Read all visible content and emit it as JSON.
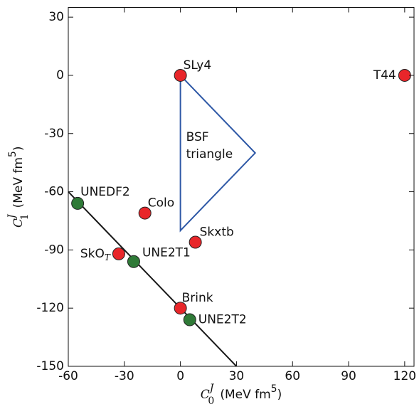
{
  "chart_data": {
    "type": "scatter",
    "x_label": {
      "symbol": "C",
      "sub": "0",
      "sup": "J",
      "unit": "(MeV fm",
      "unit_sup": "5",
      "close": ")"
    },
    "y_label": {
      "symbol": "C",
      "sub": "1",
      "sup": "J",
      "unit": "(MeV fm",
      "unit_sup": "5",
      "close": ")"
    },
    "xlim": [
      -60,
      125
    ],
    "ylim": [
      -150,
      35
    ],
    "xticks": [
      -60,
      -30,
      0,
      30,
      60,
      90,
      120
    ],
    "yticks": [
      -150,
      -120,
      -90,
      -60,
      -30,
      0,
      30
    ],
    "series": [
      {
        "color": "#e8262a",
        "labels": [
          "SLy4",
          "T44",
          "Colo",
          "Skxtb",
          {
            "text": "SkO",
            "sub": "T"
          },
          "Brink"
        ],
        "x": [
          0,
          120,
          -19,
          8,
          -33,
          0
        ],
        "y": [
          0,
          0,
          -71,
          -86,
          -92,
          -120
        ]
      },
      {
        "color": "#2f7a37",
        "labels": [
          "UNEDF2",
          "UNE2T1",
          "UNE2T2"
        ],
        "x": [
          -55,
          -25,
          5
        ],
        "y": [
          -66,
          -96,
          -126
        ]
      }
    ],
    "lines": [
      {
        "color": "#1a1a1a",
        "x": [
          -60,
          30
        ],
        "y": [
          -60,
          -150
        ]
      }
    ],
    "polygons": [
      {
        "color": "#2e58a6",
        "x": [
          0,
          40,
          0
        ],
        "y": [
          0,
          -40,
          -80
        ],
        "label": [
          "BSF",
          "triangle"
        ]
      }
    ]
  }
}
